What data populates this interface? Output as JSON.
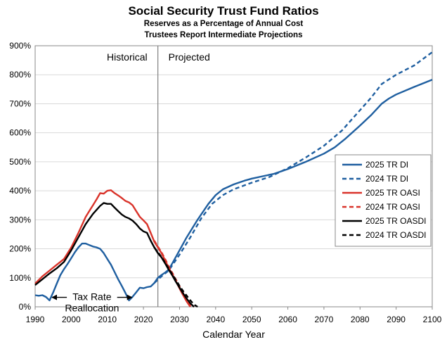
{
  "chart_data": {
    "type": "line",
    "title": "Social Security Trust Fund Ratios",
    "subtitle1": "Reserves as a Percentage of Annual Cost",
    "subtitle2": "Trustees Report Intermediate Projections",
    "xlabel": "Calendar Year",
    "ylabel": "",
    "xlim": [
      1990,
      2100
    ],
    "ylim": [
      0,
      900
    ],
    "xticks": [
      1990,
      2000,
      2010,
      2020,
      2030,
      2040,
      2050,
      2060,
      2070,
      2080,
      2090,
      2100
    ],
    "yticks": [
      0,
      100,
      200,
      300,
      400,
      500,
      600,
      700,
      800,
      900
    ],
    "ytick_labels": [
      "0%",
      "100%",
      "200%",
      "300%",
      "400%",
      "500%",
      "600%",
      "700%",
      "800%",
      "900%"
    ],
    "divider_year": 2024,
    "annotations": {
      "historical": "Historical",
      "projected": "Projected",
      "tax_rate_line1": "Tax Rate",
      "tax_rate_line2": "Reallocation",
      "arrow_left_year": 1994.5,
      "arrow_right_year": 2017,
      "arrow_value": 35
    },
    "colors": {
      "di": "#1f5fa0",
      "oasi": "#d9332a",
      "oasdi": "#000000",
      "divider": "#808080",
      "grid": "#d9d9d9"
    },
    "legend": {
      "placement": "right",
      "entries": [
        {
          "label": "2025 TR DI",
          "color": "#1f5fa0",
          "dashed": false
        },
        {
          "label": "2024 TR DI",
          "color": "#1f5fa0",
          "dashed": true
        },
        {
          "label": "2025 TR OASI",
          "color": "#d9332a",
          "dashed": false
        },
        {
          "label": "2024 TR OASI",
          "color": "#d9332a",
          "dashed": true
        },
        {
          "label": "2025 TR OASDI",
          "color": "#000000",
          "dashed": false
        },
        {
          "label": "2024 TR OASDI",
          "color": "#000000",
          "dashed": true
        }
      ]
    },
    "series": [
      {
        "name": "2025 TR DI",
        "color": "#1f5fa0",
        "dashed": false,
        "points": [
          [
            1990,
            40
          ],
          [
            1991,
            38
          ],
          [
            1992,
            40
          ],
          [
            1993,
            34
          ],
          [
            1994,
            22
          ],
          [
            1995,
            50
          ],
          [
            1996,
            80
          ],
          [
            1997,
            110
          ],
          [
            1998,
            130
          ],
          [
            1999,
            148
          ],
          [
            2000,
            168
          ],
          [
            2001,
            188
          ],
          [
            2002,
            205
          ],
          [
            2003,
            218
          ],
          [
            2004,
            218
          ],
          [
            2005,
            213
          ],
          [
            2006,
            208
          ],
          [
            2007,
            205
          ],
          [
            2008,
            200
          ],
          [
            2009,
            185
          ],
          [
            2010,
            165
          ],
          [
            2011,
            145
          ],
          [
            2012,
            120
          ],
          [
            2013,
            95
          ],
          [
            2014,
            72
          ],
          [
            2015,
            48
          ],
          [
            2016,
            22
          ],
          [
            2017,
            35
          ],
          [
            2018,
            50
          ],
          [
            2019,
            66
          ],
          [
            2020,
            64
          ],
          [
            2021,
            68
          ],
          [
            2022,
            70
          ],
          [
            2023,
            82
          ],
          [
            2024,
            100
          ],
          [
            2025,
            110
          ],
          [
            2026,
            118
          ],
          [
            2027,
            128
          ],
          [
            2028,
            150
          ],
          [
            2030,
            195
          ],
          [
            2032,
            240
          ],
          [
            2035,
            300
          ],
          [
            2038,
            355
          ],
          [
            2040,
            385
          ],
          [
            2042,
            405
          ],
          [
            2045,
            422
          ],
          [
            2048,
            435
          ],
          [
            2050,
            442
          ],
          [
            2053,
            450
          ],
          [
            2056,
            458
          ],
          [
            2060,
            475
          ],
          [
            2065,
            500
          ],
          [
            2070,
            528
          ],
          [
            2073,
            550
          ],
          [
            2076,
            580
          ],
          [
            2080,
            625
          ],
          [
            2083,
            660
          ],
          [
            2086,
            700
          ],
          [
            2088,
            718
          ],
          [
            2090,
            732
          ],
          [
            2095,
            758
          ],
          [
            2100,
            783
          ]
        ]
      },
      {
        "name": "2024 TR DI",
        "color": "#1f5fa0",
        "dashed": true,
        "points": [
          [
            2023,
            82
          ],
          [
            2025,
            105
          ],
          [
            2027,
            125
          ],
          [
            2030,
            180
          ],
          [
            2033,
            240
          ],
          [
            2036,
            305
          ],
          [
            2039,
            355
          ],
          [
            2042,
            385
          ],
          [
            2045,
            405
          ],
          [
            2050,
            428
          ],
          [
            2055,
            448
          ],
          [
            2060,
            478
          ],
          [
            2065,
            515
          ],
          [
            2070,
            555
          ],
          [
            2075,
            608
          ],
          [
            2080,
            678
          ],
          [
            2083,
            720
          ],
          [
            2086,
            768
          ],
          [
            2090,
            800
          ],
          [
            2095,
            832
          ],
          [
            2100,
            878
          ]
        ]
      },
      {
        "name": "2025 TR OASI",
        "color": "#d9332a",
        "dashed": false,
        "points": [
          [
            1990,
            80
          ],
          [
            1992,
            105
          ],
          [
            1994,
            125
          ],
          [
            1996,
            145
          ],
          [
            1998,
            165
          ],
          [
            2000,
            205
          ],
          [
            2002,
            255
          ],
          [
            2004,
            310
          ],
          [
            2006,
            350
          ],
          [
            2007,
            370
          ],
          [
            2008,
            392
          ],
          [
            2009,
            390
          ],
          [
            2010,
            400
          ],
          [
            2011,
            402
          ],
          [
            2012,
            392
          ],
          [
            2013,
            384
          ],
          [
            2014,
            375
          ],
          [
            2015,
            365
          ],
          [
            2016,
            360
          ],
          [
            2017,
            350
          ],
          [
            2018,
            330
          ],
          [
            2019,
            310
          ],
          [
            2020,
            298
          ],
          [
            2021,
            285
          ],
          [
            2022,
            255
          ],
          [
            2023,
            225
          ],
          [
            2024,
            205
          ],
          [
            2025,
            185
          ],
          [
            2026,
            160
          ],
          [
            2027,
            135
          ],
          [
            2028,
            112
          ],
          [
            2029,
            88
          ],
          [
            2030,
            63
          ],
          [
            2031,
            40
          ],
          [
            2032,
            18
          ],
          [
            2033,
            0
          ]
        ]
      },
      {
        "name": "2024 TR OASI",
        "color": "#d9332a",
        "dashed": true,
        "points": [
          [
            2023,
            228
          ],
          [
            2024,
            208
          ],
          [
            2025,
            188
          ],
          [
            2026,
            165
          ],
          [
            2027,
            140
          ],
          [
            2028,
            117
          ],
          [
            2029,
            94
          ],
          [
            2030,
            70
          ],
          [
            2031,
            48
          ],
          [
            2032,
            26
          ],
          [
            2033,
            6
          ],
          [
            2034,
            0
          ]
        ]
      },
      {
        "name": "2025 TR OASDI",
        "color": "#000000",
        "dashed": false,
        "points": [
          [
            1990,
            75
          ],
          [
            1992,
            95
          ],
          [
            1994,
            115
          ],
          [
            1996,
            133
          ],
          [
            1998,
            155
          ],
          [
            2000,
            195
          ],
          [
            2002,
            240
          ],
          [
            2004,
            285
          ],
          [
            2006,
            320
          ],
          [
            2008,
            348
          ],
          [
            2009,
            358
          ],
          [
            2010,
            355
          ],
          [
            2011,
            355
          ],
          [
            2012,
            342
          ],
          [
            2013,
            330
          ],
          [
            2014,
            318
          ],
          [
            2015,
            310
          ],
          [
            2016,
            305
          ],
          [
            2017,
            297
          ],
          [
            2018,
            285
          ],
          [
            2019,
            270
          ],
          [
            2020,
            260
          ],
          [
            2021,
            255
          ],
          [
            2022,
            228
          ],
          [
            2023,
            205
          ],
          [
            2024,
            185
          ],
          [
            2025,
            170
          ],
          [
            2026,
            150
          ],
          [
            2027,
            128
          ],
          [
            2028,
            108
          ],
          [
            2029,
            86
          ],
          [
            2030,
            66
          ],
          [
            2031,
            46
          ],
          [
            2032,
            28
          ],
          [
            2033,
            12
          ],
          [
            2034,
            0
          ]
        ]
      },
      {
        "name": "2024 TR OASDI",
        "color": "#000000",
        "dashed": true,
        "points": [
          [
            2023,
            205
          ],
          [
            2024,
            188
          ],
          [
            2025,
            172
          ],
          [
            2026,
            152
          ],
          [
            2027,
            132
          ],
          [
            2028,
            112
          ],
          [
            2029,
            92
          ],
          [
            2030,
            72
          ],
          [
            2031,
            54
          ],
          [
            2032,
            38
          ],
          [
            2033,
            22
          ],
          [
            2034,
            8
          ],
          [
            2035,
            0
          ]
        ]
      }
    ]
  }
}
